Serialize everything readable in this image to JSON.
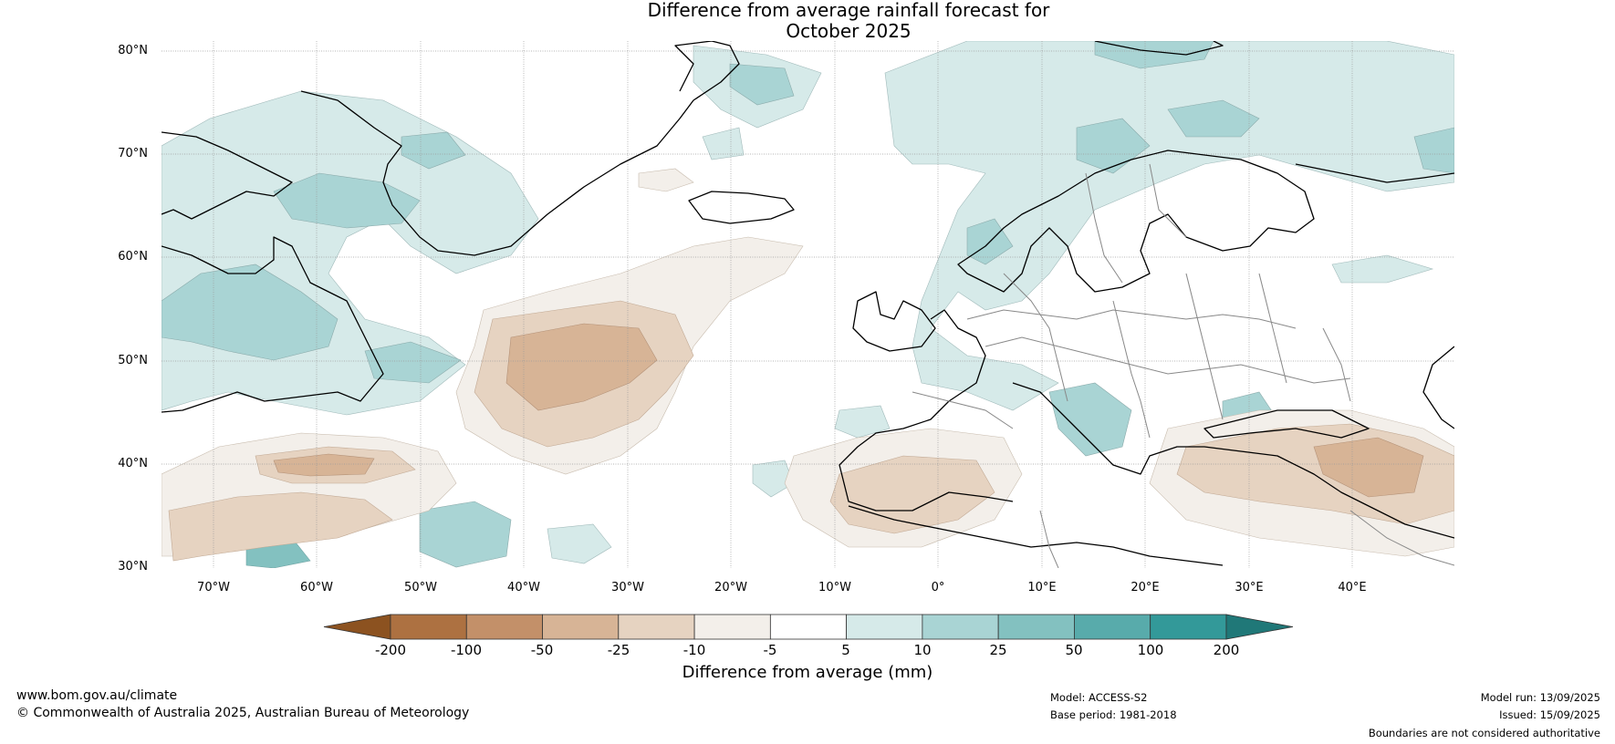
{
  "title_line1": "Difference from average rainfall forecast for",
  "title_line2": "October 2025",
  "map": {
    "lat_labels": [
      "80°N",
      "70°N",
      "60°N",
      "50°N",
      "40°N",
      "30°N"
    ],
    "lon_labels": [
      "70°W",
      "60°W",
      "50°W",
      "40°W",
      "30°W",
      "20°W",
      "10°W",
      "0°",
      "10°E",
      "20°E",
      "30°E",
      "40°E"
    ],
    "extent": {
      "lon_min": -75,
      "lon_max": 50,
      "lat_min": 30,
      "lat_max": 81
    },
    "coastline_color": "#000000",
    "border_color": "#888888",
    "gridlines": true
  },
  "colorbar": {
    "title": "Difference from average (mm)",
    "tick_labels": [
      "-200",
      "-100",
      "-50",
      "-25",
      "-10",
      "-5",
      "5",
      "10",
      "25",
      "50",
      "100",
      "200"
    ],
    "colors": [
      "#8c5220",
      "#ad7141",
      "#c39069",
      "#d7b496",
      "#e6d3c1",
      "#f3efea",
      "#ffffff",
      "#d6eae9",
      "#a9d4d4",
      "#83c1c0",
      "#58abab",
      "#339999",
      "#207878"
    ],
    "extend": "both"
  },
  "footer": {
    "website": "www.bom.gov.au/climate",
    "copyright": "© Commonwealth of Australia 2025, Australian Bureau of Meteorology",
    "model": "Model: ACCESS-S2",
    "base_period": "Base period: 1981-2018",
    "model_run": "Model run: 13/09/2025",
    "issued": "Issued: 15/09/2025",
    "disclaimer": "Boundaries are not considered authoritative"
  }
}
